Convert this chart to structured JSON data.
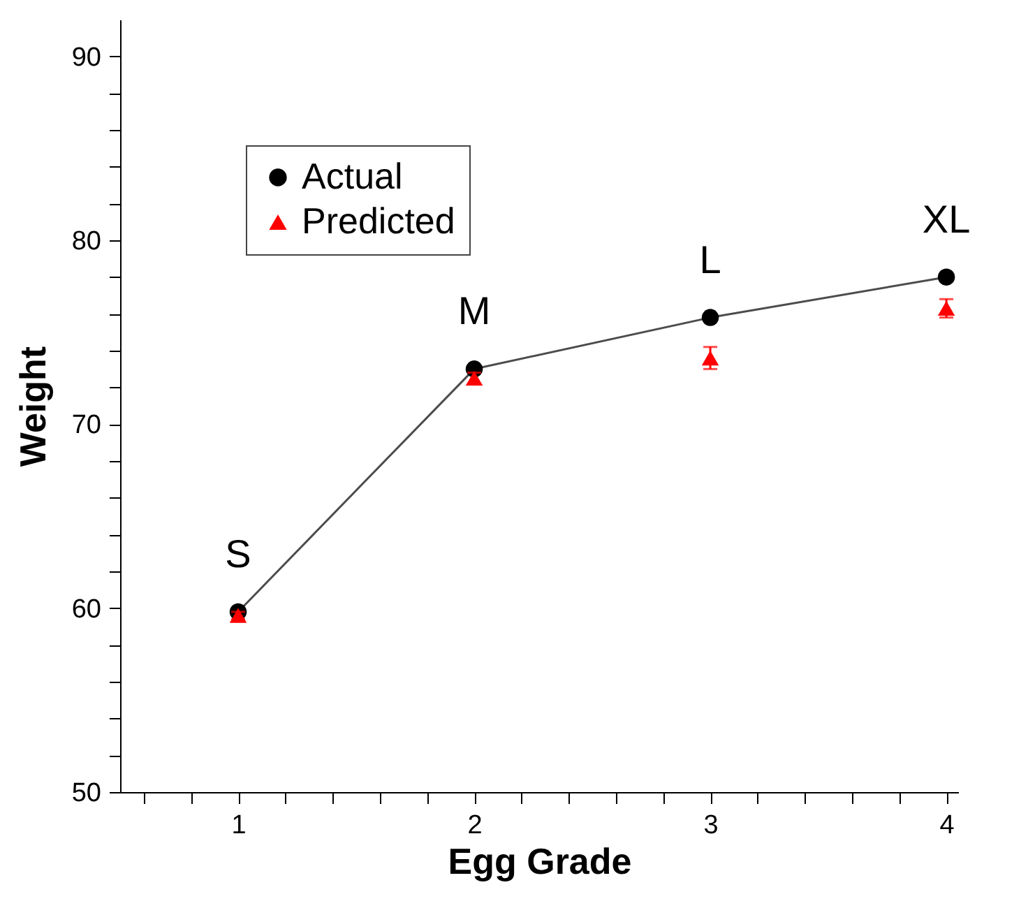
{
  "chart_data": {
    "type": "line",
    "xlabel": "Egg Grade",
    "ylabel": "Weight",
    "x": [
      1,
      2,
      3,
      4
    ],
    "series": [
      {
        "name": "Actual",
        "color": "#000000",
        "marker": "circle",
        "values": [
          59.8,
          73.0,
          75.8,
          78.0
        ]
      },
      {
        "name": "Predicted",
        "type": "scatter",
        "color": "#ff0000",
        "marker": "triangle",
        "values": [
          59.6,
          72.5,
          73.6,
          76.3
        ],
        "errors": [
          0.2,
          0.3,
          0.6,
          0.5
        ]
      }
    ],
    "annotations": [
      {
        "text": "S",
        "x": 1,
        "y": 59.8
      },
      {
        "text": "M",
        "x": 2,
        "y": 73.0
      },
      {
        "text": "L",
        "x": 3,
        "y": 75.8
      },
      {
        "text": "XL",
        "x": 4,
        "y": 78.0
      }
    ],
    "xlim": [
      0.5,
      4.05
    ],
    "ylim": [
      50,
      92
    ],
    "xticks": [
      {
        "value": 0.6,
        "label": null
      },
      {
        "value": 0.8,
        "label": null
      },
      1,
      {
        "value": 1.2,
        "label": null
      },
      {
        "value": 1.4,
        "label": null
      },
      {
        "value": 1.6,
        "label": null
      },
      {
        "value": 1.8,
        "label": null
      },
      2,
      {
        "value": 2.2,
        "label": null
      },
      {
        "value": 2.4,
        "label": null
      },
      {
        "value": 2.6,
        "label": null
      },
      {
        "value": 2.8,
        "label": null
      },
      3,
      {
        "value": 3.2,
        "label": null
      },
      {
        "value": 3.4,
        "label": null
      },
      {
        "value": 3.6,
        "label": null
      },
      {
        "value": 3.8,
        "label": null
      },
      4
    ],
    "yticks": [
      50,
      {
        "value": 52,
        "label": null
      },
      {
        "value": 54,
        "label": null
      },
      {
        "value": 56,
        "label": null
      },
      {
        "value": 58,
        "label": null
      },
      60,
      {
        "value": 62,
        "label": null
      },
      {
        "value": 64,
        "label": null
      },
      {
        "value": 66,
        "label": null
      },
      {
        "value": 68,
        "label": null
      },
      70,
      {
        "value": 72,
        "label": null
      },
      {
        "value": 74,
        "label": null
      },
      {
        "value": 76,
        "label": null
      },
      {
        "value": 78,
        "label": null
      },
      80,
      {
        "value": 82,
        "label": null
      },
      {
        "value": 84,
        "label": null
      },
      {
        "value": 86,
        "label": null
      },
      {
        "value": 88,
        "label": null
      },
      90
    ],
    "grid": false,
    "legend": "top left",
    "line_style": "solid"
  }
}
